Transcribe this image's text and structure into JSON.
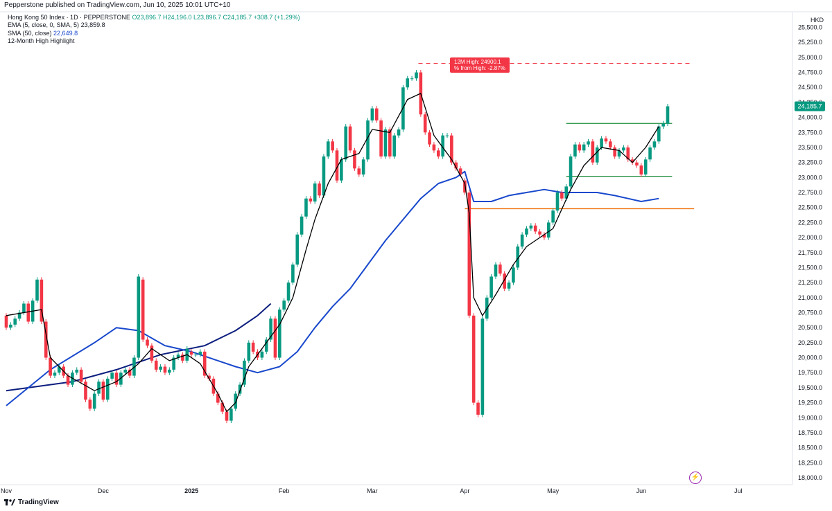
{
  "header": {
    "published": "Pepperstone published on TradingView.com, Jun 10, 2025 10:01 UTC+10",
    "symbol": "Hong Kong 50 Index · 1D · PEPPERSTONE",
    "ohlc": "O23,896.7 H24,196.0 L23,896.7 C24,185.7 +308.7 (+1.29%)",
    "ema_label": "EMA (5, close, 0, SMA, 5)",
    "ema_value": "23,859.8",
    "sma_label": "SMA (50, close)",
    "sma_value": "22,649.8",
    "highlight_label": "12-Month High Highlight",
    "currency": "HKD"
  },
  "footer": {
    "brand": "TradingView"
  },
  "colors": {
    "up": "#089981",
    "down": "#f23645",
    "ema": "#000000",
    "sma": "#1848cc",
    "sma_old": "#0c1e7e",
    "level_green": "#1e8e3e",
    "level_orange": "#ef6c00",
    "price_tag": "#089981",
    "high_label": "#f23645"
  },
  "chart_data": {
    "type": "candlestick",
    "title": "Hong Kong 50 Index · 1D · PEPPERSTONE",
    "y_ticks": [
      "25,500.0",
      "25,250.0",
      "25,000.0",
      "24,750.0",
      "24,500.0",
      "24,250.0",
      "24,000.0",
      "23,750.0",
      "23,500.0",
      "23,250.0",
      "23,000.0",
      "22,750.0",
      "22,500.0",
      "22,250.0",
      "22,000.0",
      "21,750.0",
      "21,500.0",
      "21,250.0",
      "21,000.0",
      "20,750.0",
      "20,500.0",
      "20,250.0",
      "20,000.0",
      "19,750.0",
      "19,500.0",
      "19,250.0",
      "19,000.0",
      "18,750.0",
      "18,500.0",
      "18,250.0",
      "18,000.0"
    ],
    "ylim": [
      17950,
      25580
    ],
    "x_labels": [
      {
        "label": "Nov",
        "bar": 0
      },
      {
        "label": "Dec",
        "bar": 22
      },
      {
        "label": "2025",
        "bar": 42
      },
      {
        "label": "Feb",
        "bar": 63
      },
      {
        "label": "Mar",
        "bar": 83
      },
      {
        "label": "Apr",
        "bar": 104
      },
      {
        "label": "May",
        "bar": 124
      },
      {
        "label": "Jun",
        "bar": 144
      },
      {
        "label": "Jul",
        "bar": 166
      }
    ],
    "candles_oc": [
      [
        20700,
        20500
      ],
      [
        20500,
        20550
      ],
      [
        20550,
        20650
      ],
      [
        20650,
        20750
      ],
      [
        20750,
        20900
      ],
      [
        20900,
        20600
      ],
      [
        20600,
        20950
      ],
      [
        20950,
        21300
      ],
      [
        21300,
        20600
      ],
      [
        20600,
        20000
      ],
      [
        20000,
        19700
      ],
      [
        19700,
        19750
      ],
      [
        19750,
        19850
      ],
      [
        19850,
        19700
      ],
      [
        19700,
        19550
      ],
      [
        19550,
        19750
      ],
      [
        19750,
        19800
      ],
      [
        19800,
        19600
      ],
      [
        19600,
        19300
      ],
      [
        19300,
        19150
      ],
      [
        19150,
        19400
      ],
      [
        19400,
        19600
      ],
      [
        19600,
        19300
      ],
      [
        19300,
        19650
      ],
      [
        19650,
        19750
      ],
      [
        19750,
        19550
      ],
      [
        19550,
        19750
      ],
      [
        19750,
        19800
      ],
      [
        19800,
        19700
      ],
      [
        19700,
        20000
      ],
      [
        20000,
        21350
      ],
      [
        21300,
        20300
      ],
      [
        20300,
        20200
      ],
      [
        20200,
        19950
      ],
      [
        19950,
        19800
      ],
      [
        19800,
        19850
      ],
      [
        19850,
        19750
      ],
      [
        19750,
        19800
      ],
      [
        19800,
        20000
      ],
      [
        20000,
        20050
      ],
      [
        20050,
        19950
      ],
      [
        19950,
        20150
      ],
      [
        20100,
        20050
      ],
      [
        20050,
        20050
      ],
      [
        20050,
        20100
      ],
      [
        20100,
        19700
      ],
      [
        19700,
        19650
      ],
      [
        19650,
        19400
      ],
      [
        19400,
        19250
      ],
      [
        19250,
        19100
      ],
      [
        19100,
        18950
      ],
      [
        18950,
        19150
      ],
      [
        19150,
        19400
      ],
      [
        19400,
        19550
      ],
      [
        19550,
        19950
      ],
      [
        19950,
        20250
      ],
      [
        20250,
        20100
      ],
      [
        20100,
        20000
      ],
      [
        20000,
        20100
      ],
      [
        20100,
        20300
      ],
      [
        20300,
        20650
      ],
      [
        20650,
        20000
      ],
      [
        20000,
        20800
      ],
      [
        20800,
        20950
      ],
      [
        20950,
        21250
      ],
      [
        21250,
        21550
      ],
      [
        21550,
        22050
      ],
      [
        22050,
        22350
      ],
      [
        22350,
        22650
      ],
      [
        22650,
        22600
      ],
      [
        22600,
        22900
      ],
      [
        22900,
        22700
      ],
      [
        22700,
        23350
      ],
      [
        23350,
        23600
      ],
      [
        23600,
        23450
      ],
      [
        23450,
        22950
      ],
      [
        22950,
        23300
      ],
      [
        23300,
        23850
      ],
      [
        23850,
        23450
      ],
      [
        23450,
        23150
      ],
      [
        23150,
        23050
      ],
      [
        23050,
        23300
      ],
      [
        23300,
        23950
      ],
      [
        23950,
        24150
      ],
      [
        24150,
        23950
      ],
      [
        23950,
        23350
      ],
      [
        23350,
        23800
      ],
      [
        23800,
        23350
      ],
      [
        23350,
        23700
      ],
      [
        23700,
        23800
      ],
      [
        23800,
        24500
      ],
      [
        24500,
        24650
      ],
      [
        24650,
        24650
      ],
      [
        24650,
        24750
      ],
      [
        24750,
        24050
      ],
      [
        24050,
        23750
      ],
      [
        23750,
        23550
      ],
      [
        23550,
        23450
      ],
      [
        23450,
        23350
      ],
      [
        23350,
        23700
      ],
      [
        23700,
        23700
      ],
      [
        23700,
        23250
      ],
      [
        23250,
        23150
      ],
      [
        23150,
        23050
      ],
      [
        22950,
        22750
      ],
      [
        22750,
        20700
      ],
      [
        20700,
        19250
      ],
      [
        19250,
        19050
      ],
      [
        19050,
        20650
      ],
      [
        20650,
        21000
      ],
      [
        21000,
        21350
      ],
      [
        21350,
        21550
      ],
      [
        21550,
        21400
      ],
      [
        21400,
        21150
      ],
      [
        21150,
        21250
      ],
      [
        21250,
        21500
      ],
      [
        21500,
        21850
      ],
      [
        21850,
        22050
      ],
      [
        22050,
        22150
      ],
      [
        22150,
        22200
      ],
      [
        22200,
        22100
      ],
      [
        22100,
        22050
      ],
      [
        22050,
        22000
      ],
      [
        22000,
        22250
      ],
      [
        22250,
        22450
      ],
      [
        22450,
        22750
      ],
      [
        22750,
        22650
      ],
      [
        22650,
        22850
      ],
      [
        22850,
        23350
      ],
      [
        23350,
        23550
      ],
      [
        23550,
        23450
      ],
      [
        23450,
        23550
      ],
      [
        23550,
        23600
      ],
      [
        23600,
        23250
      ],
      [
        23250,
        23500
      ],
      [
        23500,
        23650
      ],
      [
        23650,
        23600
      ],
      [
        23600,
        23500
      ],
      [
        23500,
        23350
      ],
      [
        23350,
        23450
      ],
      [
        23450,
        23500
      ],
      [
        23500,
        23300
      ],
      [
        23300,
        23250
      ],
      [
        23250,
        23200
      ],
      [
        23200,
        23050
      ],
      [
        23050,
        23300
      ],
      [
        23300,
        23500
      ],
      [
        23500,
        23600
      ],
      [
        23600,
        23850
      ],
      [
        23850,
        23900
      ],
      [
        23896.7,
        24185.7
      ]
    ],
    "ema": [
      [
        0,
        20700
      ],
      [
        8,
        20800
      ],
      [
        10,
        20000
      ],
      [
        14,
        19700
      ],
      [
        20,
        19450
      ],
      [
        25,
        19600
      ],
      [
        30,
        19900
      ],
      [
        33,
        20150
      ],
      [
        37,
        19950
      ],
      [
        41,
        20050
      ],
      [
        44,
        19900
      ],
      [
        48,
        19400
      ],
      [
        50,
        19100
      ],
      [
        52,
        19250
      ],
      [
        55,
        19850
      ],
      [
        59,
        20250
      ],
      [
        62,
        20550
      ],
      [
        65,
        21000
      ],
      [
        68,
        21800
      ],
      [
        70,
        22300
      ],
      [
        73,
        22900
      ],
      [
        76,
        23300
      ],
      [
        80,
        23400
      ],
      [
        83,
        23800
      ],
      [
        87,
        23750
      ],
      [
        91,
        24300
      ],
      [
        94,
        24400
      ],
      [
        97,
        23700
      ],
      [
        101,
        23300
      ],
      [
        104,
        22900
      ],
      [
        105,
        22400
      ],
      [
        106,
        21000
      ],
      [
        108,
        20700
      ],
      [
        111,
        21050
      ],
      [
        115,
        21550
      ],
      [
        118,
        21850
      ],
      [
        121,
        22000
      ],
      [
        124,
        22150
      ],
      [
        128,
        22800
      ],
      [
        131,
        23200
      ],
      [
        135,
        23500
      ],
      [
        139,
        23450
      ],
      [
        142,
        23250
      ],
      [
        145,
        23500
      ],
      [
        148,
        23850
      ]
    ],
    "sma": [
      [
        0,
        19200
      ],
      [
        10,
        19800
      ],
      [
        20,
        20250
      ],
      [
        25,
        20500
      ],
      [
        30,
        20450
      ],
      [
        36,
        20200
      ],
      [
        42,
        20100
      ],
      [
        48,
        19950
      ],
      [
        52,
        19850
      ],
      [
        57,
        19750
      ],
      [
        62,
        19850
      ],
      [
        66,
        20100
      ],
      [
        70,
        20500
      ],
      [
        74,
        20850
      ],
      [
        78,
        21150
      ],
      [
        82,
        21550
      ],
      [
        86,
        21950
      ],
      [
        90,
        22300
      ],
      [
        94,
        22650
      ],
      [
        98,
        22900
      ],
      [
        102,
        23000
      ],
      [
        104,
        23100
      ],
      [
        106,
        22600
      ],
      [
        110,
        22600
      ],
      [
        114,
        22700
      ],
      [
        118,
        22750
      ],
      [
        122,
        22800
      ],
      [
        126,
        22750
      ],
      [
        130,
        22750
      ],
      [
        134,
        22750
      ],
      [
        138,
        22700
      ],
      [
        141,
        22650
      ],
      [
        144,
        22600
      ],
      [
        148,
        22650
      ]
    ],
    "sma_prior": [
      [
        0,
        19450
      ],
      [
        15,
        19600
      ],
      [
        25,
        19800
      ],
      [
        35,
        20050
      ],
      [
        45,
        20200
      ],
      [
        52,
        20450
      ],
      [
        57,
        20700
      ],
      [
        60,
        20900
      ]
    ],
    "levels": [
      {
        "value": 23900,
        "from": 127,
        "to": 151,
        "color": "green"
      },
      {
        "value": 23020,
        "from": 127,
        "to": 151,
        "color": "green"
      },
      {
        "value": 22480,
        "from": 104,
        "to": 156,
        "color": "orange"
      }
    ],
    "twelve_month_high": {
      "line1": "12M High: 24900.1",
      "line2": "% from High: -2.87%",
      "value": 24900.1,
      "bar": 93
    },
    "last_price": {
      "value": 24185.7,
      "label": "24,185.7"
    }
  }
}
